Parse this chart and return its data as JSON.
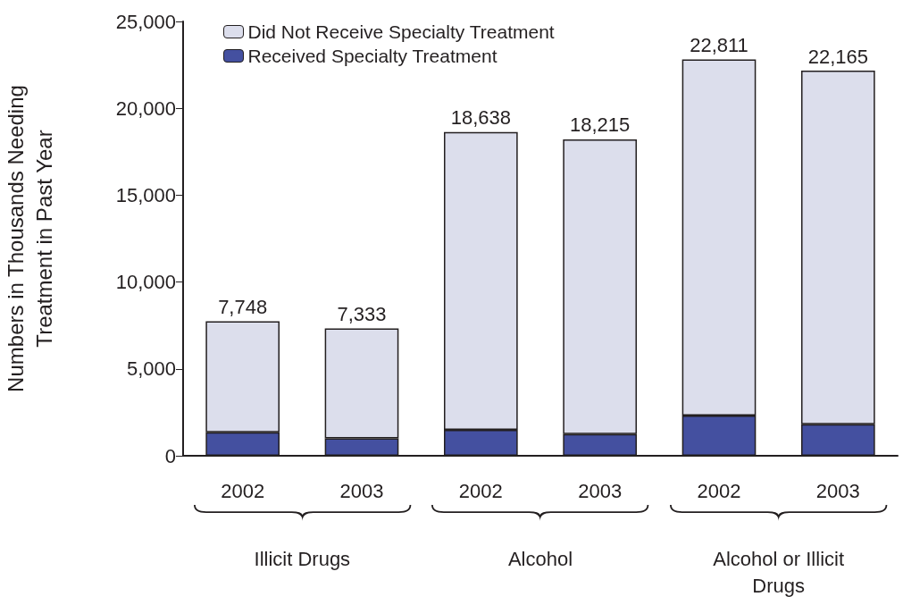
{
  "chart_data": {
    "type": "bar",
    "ylabel": "Numbers in Thousands Needing Treatment in Past Year",
    "categories": [
      "2002",
      "2003",
      "2002",
      "2003",
      "2002",
      "2003"
    ],
    "series": [
      {
        "name": "Received Specialty Treatment",
        "color": "#4450a0",
        "values": [
          1350,
          1000,
          1490,
          1250,
          2310,
          1810
        ]
      },
      {
        "name": "Did Not Receive Specialty Treatment",
        "color": "#dcdeec",
        "values": [
          6398,
          6333,
          17148,
          16965,
          20501,
          20355
        ]
      }
    ],
    "stacked": true,
    "totals": [
      "7,748",
      "7,333",
      "18,638",
      "18,215",
      "22,811",
      "22,165"
    ],
    "ylim": [
      0,
      25000
    ],
    "yticks": [
      {
        "value": 0,
        "label": "0"
      },
      {
        "value": 5000,
        "label": "5,000"
      },
      {
        "value": 10000,
        "label": "10,000"
      },
      {
        "value": 15000,
        "label": "15,000"
      },
      {
        "value": 20000,
        "label": "20,000"
      },
      {
        "value": 25000,
        "label": "25,000"
      }
    ],
    "annotations": [
      "Illicit Drugs",
      "Alcohol",
      "Alcohol or Illicit Drugs"
    ],
    "grid": false,
    "legend": "top left"
  }
}
